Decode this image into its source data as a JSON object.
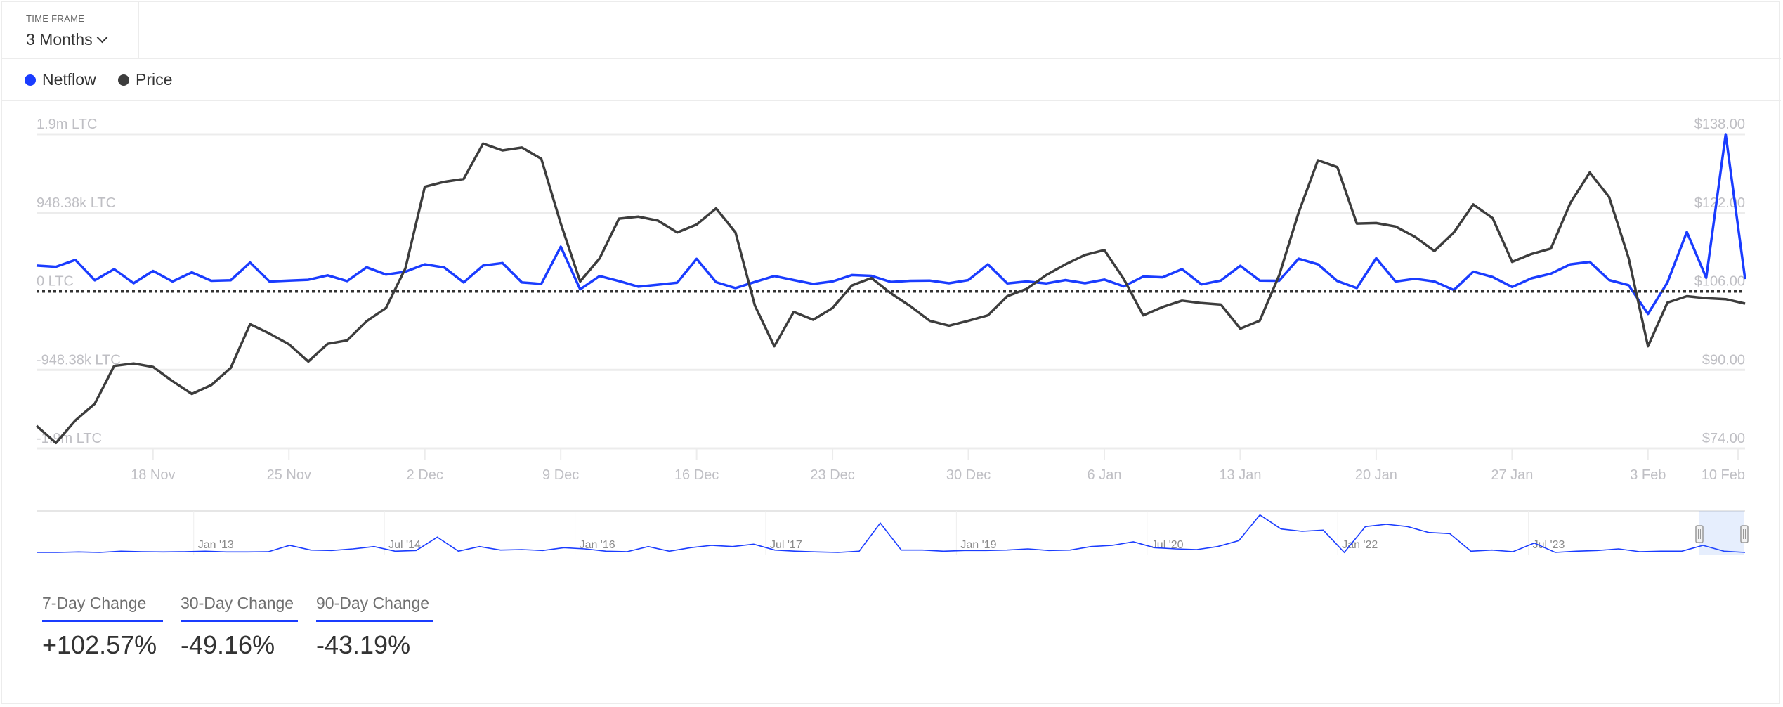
{
  "header": {
    "timeframe_label": "TIME FRAME",
    "timeframe_value": "3 Months",
    "timeframe_icon": "chevron-down-icon"
  },
  "legend": [
    {
      "label": "Netflow",
      "color": "#1a3cff"
    },
    {
      "label": "Price",
      "color": "#3d3d3d"
    }
  ],
  "chart_data": {
    "type": "line",
    "title": "",
    "x": [
      "12 Nov",
      "13 Nov",
      "14 Nov",
      "15 Nov",
      "16 Nov",
      "17 Nov",
      "18 Nov",
      "19 Nov",
      "20 Nov",
      "21 Nov",
      "22 Nov",
      "23 Nov",
      "24 Nov",
      "25 Nov",
      "26 Nov",
      "27 Nov",
      "28 Nov",
      "29 Nov",
      "30 Nov",
      "1 Dec",
      "2 Dec",
      "3 Dec",
      "4 Dec",
      "5 Dec",
      "6 Dec",
      "7 Dec",
      "8 Dec",
      "9 Dec",
      "10 Dec",
      "11 Dec",
      "12 Dec",
      "13 Dec",
      "14 Dec",
      "15 Dec",
      "16 Dec",
      "17 Dec",
      "18 Dec",
      "19 Dec",
      "20 Dec",
      "21 Dec",
      "22 Dec",
      "23 Dec",
      "24 Dec",
      "25 Dec",
      "26 Dec",
      "27 Dec",
      "28 Dec",
      "29 Dec",
      "30 Dec",
      "31 Dec",
      "1 Jan",
      "2 Jan",
      "3 Jan",
      "4 Jan",
      "5 Jan",
      "6 Jan",
      "7 Jan",
      "8 Jan",
      "9 Jan",
      "10 Jan",
      "11 Jan",
      "12 Jan",
      "13 Jan",
      "14 Jan",
      "15 Jan",
      "16 Jan",
      "17 Jan",
      "18 Jan",
      "19 Jan",
      "20 Jan",
      "21 Jan",
      "22 Jan",
      "23 Jan",
      "24 Jan",
      "25 Jan",
      "26 Jan",
      "27 Jan",
      "28 Jan",
      "29 Jan",
      "30 Jan",
      "31 Jan",
      "1 Feb",
      "2 Feb",
      "3 Feb",
      "4 Feb",
      "5 Feb",
      "6 Feb",
      "7 Feb",
      "8 Feb"
    ],
    "x_ticks": [
      "18 Nov",
      "25 Nov",
      "2 Dec",
      "9 Dec",
      "16 Dec",
      "23 Dec",
      "30 Dec",
      "6 Jan",
      "13 Jan",
      "20 Jan",
      "27 Jan",
      "3 Feb",
      "10 Feb"
    ],
    "y_left": {
      "ticks": [
        "1.9m LTC",
        "948.38k LTC",
        "0 LTC",
        "-948.38k LTC",
        "-1.9m LTC"
      ],
      "range": [
        -1896760,
        1896760
      ]
    },
    "y_right": {
      "ticks": [
        "$138.00",
        "$122.00",
        "$106.00",
        "$90.00",
        "$74.00"
      ],
      "range": [
        74,
        138
      ]
    },
    "grid": true,
    "zero_line": "dotted",
    "series": [
      {
        "name": "Netflow",
        "axis": "left",
        "color": "#1a3cff",
        "values": [
          311000,
          296000,
          379000,
          133000,
          267000,
          98000,
          246000,
          119000,
          228000,
          127000,
          133000,
          347000,
          119000,
          130000,
          139000,
          193000,
          124000,
          290000,
          202000,
          237000,
          326000,
          288000,
          107000,
          311000,
          341000,
          107000,
          89000,
          539000,
          24000,
          184000,
          124000,
          56000,
          80000,
          104000,
          391000,
          110000,
          39000,
          113000,
          184000,
          136000,
          89000,
          119000,
          196000,
          187000,
          113000,
          127000,
          130000,
          98000,
          136000,
          326000,
          95000,
          119000,
          95000,
          136000,
          98000,
          142000,
          59000,
          178000,
          169000,
          267000,
          83000,
          130000,
          308000,
          130000,
          127000,
          394000,
          326000,
          124000,
          39000,
          400000,
          119000,
          151000,
          119000,
          15000,
          237000,
          172000,
          53000,
          157000,
          213000,
          326000,
          356000,
          136000,
          74000,
          -273000,
          107000,
          717000,
          163000,
          1897000,
          148000
        ]
      },
      {
        "name": "Price",
        "axis": "right",
        "color": "#3d3d3d",
        "values": [
          78.6,
          75.1,
          79.7,
          83.1,
          90.8,
          91.3,
          90.6,
          87.7,
          85.1,
          86.9,
          90.4,
          99.3,
          97.4,
          95.2,
          91.7,
          95.3,
          96.0,
          99.9,
          102.6,
          110.7,
          127.3,
          128.3,
          128.9,
          136.1,
          134.7,
          135.3,
          133.0,
          119.8,
          108.0,
          112.7,
          120.8,
          121.2,
          120.4,
          118.0,
          119.6,
          122.9,
          118.0,
          103.1,
          94.8,
          101.8,
          100.2,
          102.6,
          107.2,
          108.7,
          105.6,
          103.0,
          100.0,
          99.0,
          100.0,
          101.1,
          105.0,
          106.5,
          109.3,
          111.5,
          113.4,
          114.4,
          108.5,
          101.1,
          102.8,
          104.1,
          103.6,
          103.3,
          98.4,
          100.0,
          109.2,
          122.0,
          132.7,
          131.3,
          119.8,
          119.9,
          119.2,
          117.1,
          114.2,
          118.0,
          123.7,
          120.9,
          112.0,
          113.6,
          114.7,
          124.0,
          130.2,
          125.2,
          112.8,
          94.8,
          103.7,
          105.0,
          104.6,
          104.4,
          103.5
        ]
      }
    ],
    "navigator": {
      "labels": [
        "Jan '13",
        "Jul '14",
        "Jan '16",
        "Jul '17",
        "Jan '19",
        "Jul '20",
        "Jan '22",
        "Jul '23"
      ],
      "values": [
        0,
        0,
        2,
        0,
        5,
        3,
        2,
        3,
        5,
        2,
        2,
        3,
        30,
        10,
        8,
        15,
        25,
        5,
        8,
        65,
        5,
        25,
        10,
        12,
        8,
        20,
        15,
        5,
        3,
        25,
        5,
        20,
        30,
        25,
        35,
        10,
        5,
        2,
        0,
        5,
        125,
        10,
        10,
        5,
        8,
        8,
        10,
        15,
        8,
        10,
        25,
        30,
        45,
        20,
        15,
        12,
        25,
        50,
        160,
        100,
        90,
        95,
        0,
        110,
        120,
        110,
        85,
        80,
        5,
        10,
        3,
        40,
        0,
        5,
        8,
        15,
        3,
        5,
        5,
        30,
        5,
        0
      ],
      "selected_range": "last 3 months"
    }
  },
  "stats": [
    {
      "label": "7-Day Change",
      "value": "+102.57%"
    },
    {
      "label": "30-Day Change",
      "value": "-49.16%"
    },
    {
      "label": "90-Day Change",
      "value": "-43.19%"
    }
  ]
}
